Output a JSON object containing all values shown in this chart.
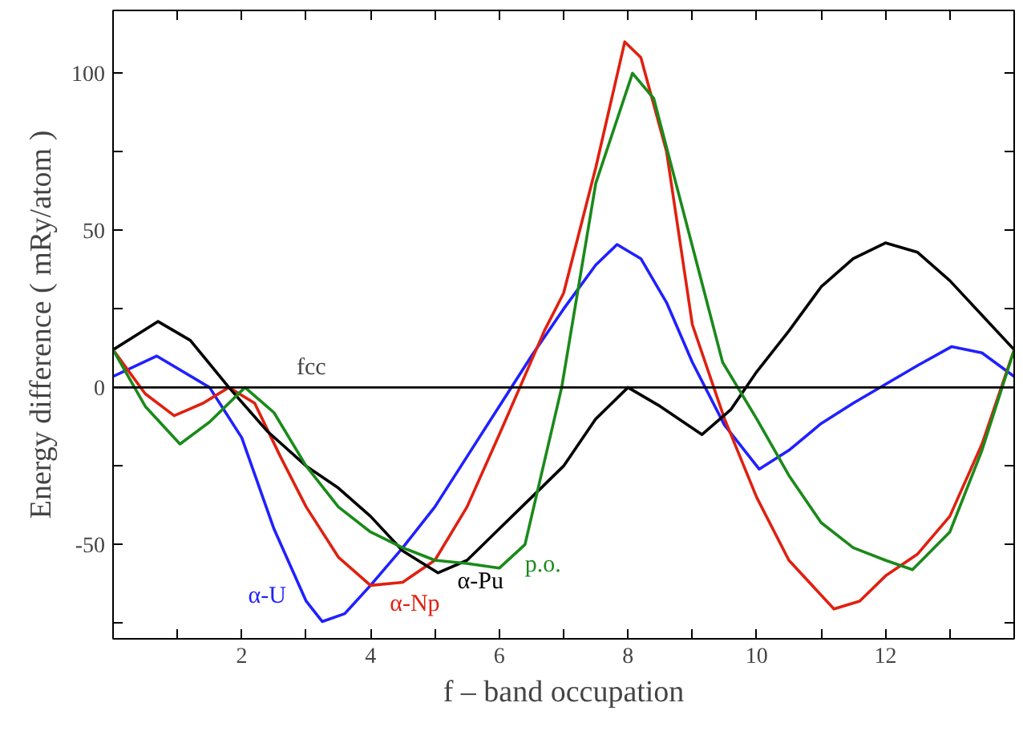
{
  "chart_data": {
    "type": "line",
    "xlabel": "f – band occupation",
    "ylabel": "Energy difference ( mRy/atom )",
    "xlim": [
      0,
      14
    ],
    "ylim": [
      -80,
      120
    ],
    "xticks": [
      {
        "value": 0,
        "label": null
      },
      {
        "value": 1,
        "label": null
      },
      2,
      {
        "value": 3,
        "label": null
      },
      4,
      {
        "value": 5,
        "label": null
      },
      6,
      {
        "value": 7,
        "label": null
      },
      8,
      {
        "value": 9,
        "label": null
      },
      10,
      {
        "value": 11,
        "label": null
      },
      12,
      {
        "value": 13,
        "label": null
      },
      {
        "value": 14,
        "label": null
      }
    ],
    "yticks": [
      {
        "value": -75,
        "label": null
      },
      -50,
      {
        "value": -25,
        "label": null
      },
      0,
      {
        "value": 25,
        "label": null
      },
      50,
      {
        "value": 75,
        "label": null
      },
      100
    ],
    "grid": false,
    "marker": "none",
    "line_style": "solid",
    "ref_lines": [
      {
        "axis": "y",
        "value": 0,
        "label": "fcc",
        "color": "#000000"
      }
    ],
    "series": [
      {
        "name": "α-U",
        "color": "#2020ff",
        "x": [
          0,
          0.68,
          1.5,
          2,
          2.5,
          3,
          3.25,
          3.6,
          4,
          4.5,
          5,
          5.5,
          6,
          6.5,
          7,
          7.5,
          7.83,
          8.2,
          8.6,
          9,
          9.5,
          10.04,
          10.5,
          11,
          11.5,
          12,
          12.5,
          13.03,
          13.5,
          14
        ],
        "values": [
          3.5,
          10,
          0,
          -16,
          -45,
          -68,
          -74.5,
          -72,
          -63,
          -51,
          -38,
          -22,
          -6,
          10,
          25,
          39,
          45.5,
          41,
          27,
          8,
          -12,
          -26,
          -20,
          -11.5,
          -5,
          1,
          7,
          13,
          11,
          3.5
        ]
      },
      {
        "name": "α-Np",
        "color": "#e02010",
        "x": [
          0,
          0.5,
          0.95,
          1.4,
          1.8,
          2.2,
          2.6,
          3,
          3.5,
          4,
          4.5,
          5,
          5.5,
          6,
          6.32,
          6.7,
          7,
          7.5,
          7.95,
          8.2,
          8.6,
          9,
          9.5,
          10,
          10.5,
          11.2,
          11.6,
          12,
          12.5,
          13,
          13.5,
          14
        ],
        "values": [
          12,
          -2,
          -9,
          -5,
          0,
          -5,
          -22,
          -38,
          -54,
          -63,
          -62,
          -55,
          -38,
          -15,
          0,
          18,
          30,
          70,
          110,
          105,
          75,
          20,
          -10,
          -35,
          -55,
          -70.5,
          -68,
          -60,
          -53,
          -41,
          -18,
          12
        ]
      },
      {
        "name": "α-Pu",
        "color": "#000000",
        "x": [
          0,
          0.7,
          1.2,
          1.8,
          2.4,
          3,
          3.5,
          4,
          4.5,
          5.05,
          5.5,
          6,
          6.5,
          7,
          7.5,
          8,
          8.5,
          9.15,
          9.6,
          10,
          10.5,
          11,
          11.5,
          12,
          12.5,
          13,
          13.5,
          14
        ],
        "values": [
          12,
          21,
          15,
          0,
          -14,
          -25,
          -32,
          -41,
          -52,
          -59,
          -55,
          -45,
          -35,
          -25,
          -10,
          0,
          -6,
          -15,
          -7,
          5,
          18,
          32,
          41,
          46,
          43,
          34,
          23,
          12
        ]
      },
      {
        "name": "p.o.",
        "color": "#1a8a1a",
        "x": [
          0,
          0.5,
          1.04,
          1.5,
          2.05,
          2.5,
          3,
          3.5,
          4,
          4.5,
          5,
          5.5,
          6,
          6.4,
          6.97,
          7.5,
          8.07,
          8.4,
          9,
          9.47,
          10,
          10.5,
          11,
          11.5,
          12,
          12.42,
          13,
          13.5,
          14
        ],
        "values": [
          12,
          -6,
          -18,
          -11,
          0,
          -8,
          -25,
          -38,
          -46,
          -51,
          -55,
          -56,
          -57.5,
          -50,
          0,
          65,
          100,
          92,
          45,
          8,
          -10,
          -28,
          -43,
          -51,
          -55,
          -58,
          -46,
          -20,
          12
        ]
      }
    ]
  }
}
